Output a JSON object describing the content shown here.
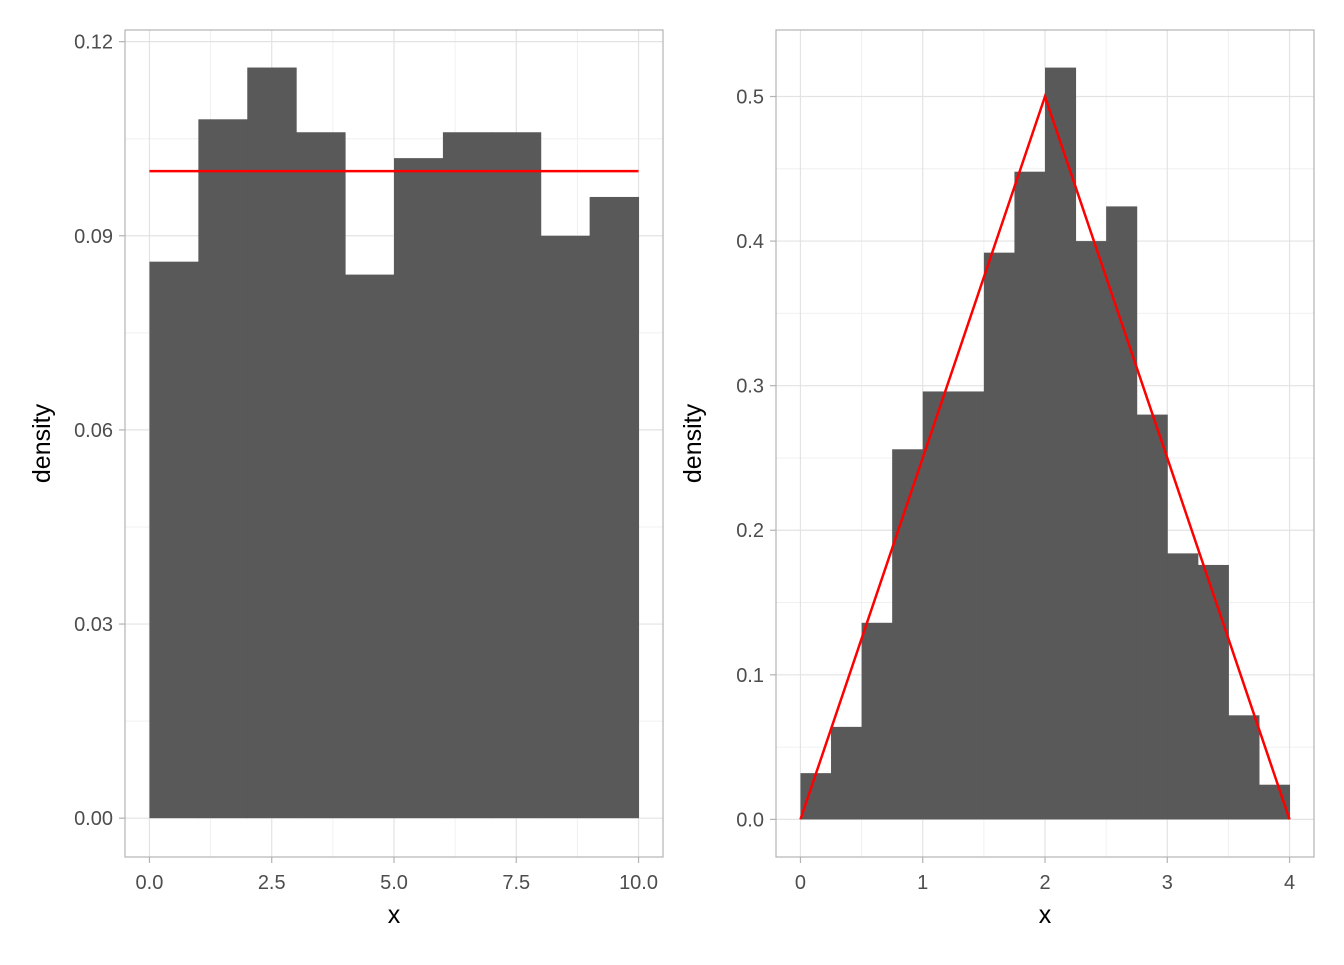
{
  "chart_data": [
    {
      "type": "bar",
      "subtype": "histogram",
      "xlabel": "x",
      "ylabel": "density",
      "xlim": [
        -0.5,
        10.5
      ],
      "ylim": [
        -0.006,
        0.1218
      ],
      "xticks": [
        0,
        2.5,
        5,
        7.5,
        10
      ],
      "xtick_labels": [
        "0.0",
        "2.5",
        "5.0",
        "7.5",
        "10.0"
      ],
      "yticks": [
        0,
        0.03,
        0.06,
        0.09,
        0.12
      ],
      "ytick_labels": [
        "0.00",
        "0.03",
        "0.06",
        "0.09",
        "0.12"
      ],
      "x_minor_gridlines": [
        1.25,
        3.75,
        6.25,
        8.75
      ],
      "y_minor_gridlines": [
        0.015,
        0.045,
        0.075,
        0.105
      ],
      "bin_edges": [
        0,
        1,
        2,
        3,
        4,
        5,
        6,
        7,
        8,
        9,
        10
      ],
      "values": [
        0.086,
        0.108,
        0.116,
        0.106,
        0.084,
        0.102,
        0.106,
        0.106,
        0.09,
        0.096
      ],
      "bar_color": "#595959",
      "overlay_line": {
        "x": [
          0,
          10
        ],
        "y": [
          0.1,
          0.1
        ],
        "color": "#ff0000"
      },
      "grid": true
    },
    {
      "type": "bar",
      "subtype": "histogram",
      "xlabel": "x",
      "ylabel": "density",
      "xlim": [
        -0.2,
        4.2
      ],
      "ylim": [
        -0.026,
        0.546
      ],
      "xticks": [
        0,
        1,
        2,
        3,
        4
      ],
      "xtick_labels": [
        "0",
        "1",
        "2",
        "3",
        "4"
      ],
      "yticks": [
        0,
        0.1,
        0.2,
        0.3,
        0.4,
        0.5
      ],
      "ytick_labels": [
        "0.0",
        "0.1",
        "0.2",
        "0.3",
        "0.4",
        "0.5"
      ],
      "x_minor_gridlines": [
        0.5,
        1.5,
        2.5,
        3.5
      ],
      "y_minor_gridlines": [
        0.05,
        0.15,
        0.25,
        0.35,
        0.45
      ],
      "bin_edges": [
        0,
        0.25,
        0.5,
        0.75,
        1.0,
        1.25,
        1.5,
        1.75,
        2.0,
        2.25,
        2.5,
        2.75,
        3.0,
        3.25,
        3.5,
        3.75,
        4.0
      ],
      "values": [
        0.032,
        0.064,
        0.136,
        0.256,
        0.296,
        0.296,
        0.392,
        0.448,
        0.52,
        0.4,
        0.424,
        0.28,
        0.184,
        0.176,
        0.072,
        0.024
      ],
      "bar_color": "#595959",
      "overlay_line": {
        "x": [
          0,
          2,
          4
        ],
        "y": [
          0,
          0.5,
          0
        ],
        "color": "#ff0000"
      },
      "grid": true
    }
  ]
}
